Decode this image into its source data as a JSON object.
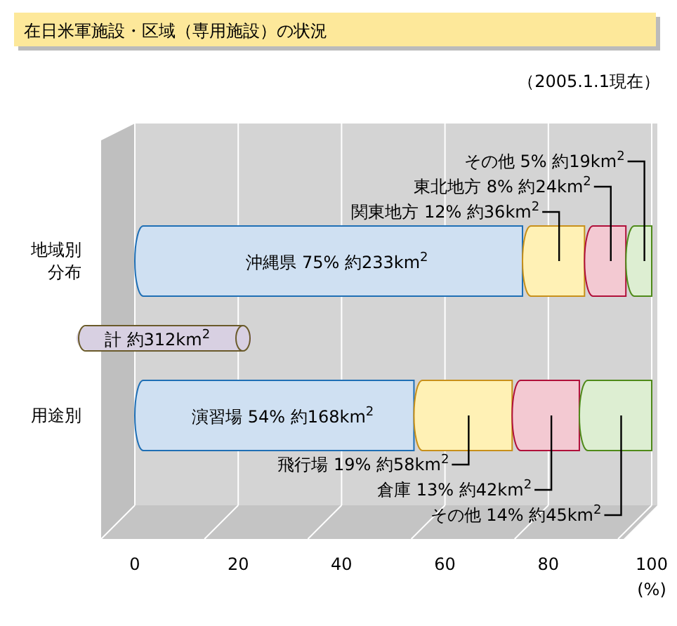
{
  "chart_data": {
    "type": "bar",
    "orientation": "horizontal",
    "stacked": true,
    "title": "在日米軍施設・区域（専用施設）の状況",
    "xlabel": "(%)",
    "categories": [
      "地域別分布",
      "用途別"
    ],
    "series": [
      {
        "color": "#cfe0f2",
        "values": [
          75,
          54
        ],
        "value_labels": [
          "沖縄県 75% 約233km$^{2}$",
          "演習場 54% 約168km$^{2}$"
        ]
      },
      {
        "color": "#fff1b5",
        "values": [
          12,
          19
        ],
        "value_labels": [
          "関東地方 12% 約36km$^{2}$",
          "飛行場 19% 約58km$^{2}$"
        ]
      },
      {
        "color": "#f3c9d2",
        "values": [
          8,
          13
        ],
        "value_labels": [
          "東北地方 8% 約24km$^{2}$",
          "倉庫 13% 約42km$^{2}$"
        ]
      },
      {
        "color": "#ddeed2",
        "values": [
          5,
          14
        ],
        "value_labels": [
          "その他 5% 約19km$^{2}$",
          "その他 14% 約45km$^{2}$"
        ]
      }
    ],
    "xlim": [
      0,
      100
    ],
    "xticks": [
      0,
      20,
      40,
      60,
      80,
      100
    ],
    "grid": "x",
    "annotations": [
      "（2005.1.1現在）",
      "計 約312km$^{2}$"
    ]
  }
}
